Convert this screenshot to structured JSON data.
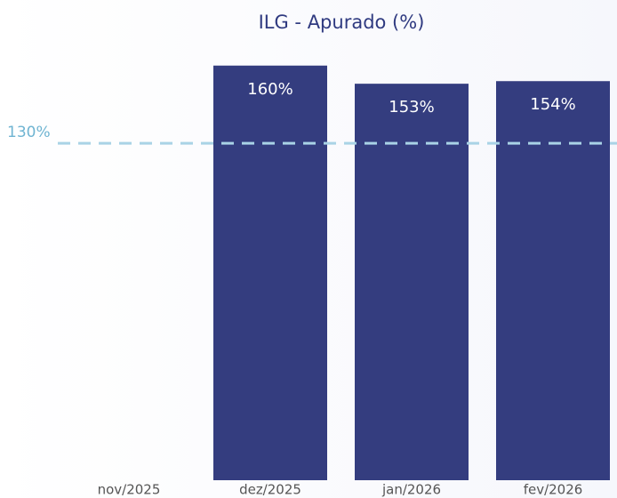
{
  "chart_data": {
    "type": "bar",
    "title": "ILG - Apurado (%)",
    "categories": [
      "nov/2025",
      "dez/2025",
      "jan/2026",
      "fev/2026"
    ],
    "values": [
      null,
      160,
      153,
      154
    ],
    "value_labels": [
      null,
      "160%",
      "153%",
      "154%"
    ],
    "color": "#343d7f",
    "ylim": [
      0,
      185
    ],
    "reference_line": {
      "value": 130,
      "label": "130%",
      "color": "#a9d3e6"
    }
  }
}
